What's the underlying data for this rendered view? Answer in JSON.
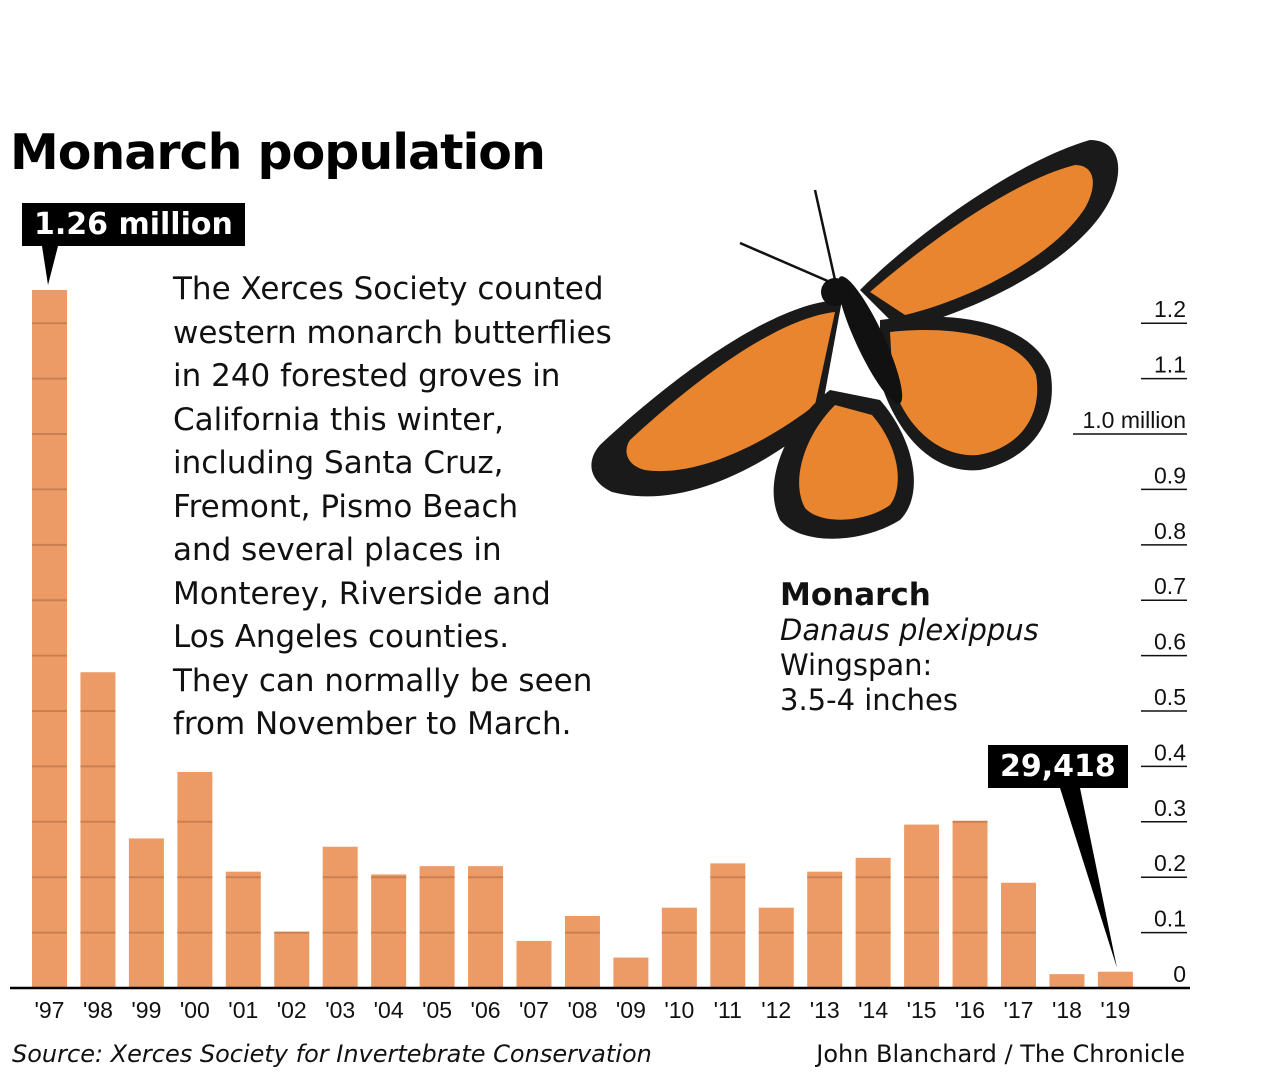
{
  "title": "Monarch population",
  "callouts": {
    "peak": "1.26 million",
    "latest": "29,418"
  },
  "description": [
    "The Xerces Society counted",
    "western monarch butterflies",
    "in 240 forested groves in",
    "California this winter,",
    "including Santa Cruz,",
    "Fremont, Pismo Beach",
    "and several places in",
    "Monterey, Riverside and",
    "Los Angeles counties.",
    "They can normally be seen",
    "from November to March."
  ],
  "species": {
    "common_name": "Monarch",
    "latin_name": "Danaus plexippus",
    "wingspan_label": "Wingspan:",
    "wingspan_value": "3.5-4 inches"
  },
  "source": "Source: Xerces Society for Invertebrate Conservation",
  "credit": "John Blanchard / The Chronicle",
  "colors": {
    "bar": "#ec9b66",
    "bar_line": "#c97f52",
    "callout_bg": "#000000"
  },
  "chart_data": {
    "type": "bar",
    "categories": [
      "'97",
      "'98",
      "'99",
      "'00",
      "'01",
      "'02",
      "'03",
      "'04",
      "'05",
      "'06",
      "'07",
      "'08",
      "'09",
      "'10",
      "'11",
      "'12",
      "'13",
      "'14",
      "'15",
      "'16",
      "'17",
      "'18",
      "'19"
    ],
    "values": [
      1.26,
      0.57,
      0.27,
      0.39,
      0.21,
      0.1,
      0.255,
      0.205,
      0.22,
      0.22,
      0.085,
      0.13,
      0.055,
      0.145,
      0.225,
      0.145,
      0.21,
      0.235,
      0.295,
      0.3,
      0.19,
      0.025,
      0.029418
    ],
    "ylim": [
      0,
      1.26
    ],
    "yticks": [
      {
        "value": 0,
        "label": "0"
      },
      {
        "value": 0.1,
        "label": "0.1"
      },
      {
        "value": 0.2,
        "label": "0.2"
      },
      {
        "value": 0.3,
        "label": "0.3"
      },
      {
        "value": 0.4,
        "label": "0.4"
      },
      {
        "value": 0.5,
        "label": "0.5"
      },
      {
        "value": 0.6,
        "label": "0.6"
      },
      {
        "value": 0.7,
        "label": "0.7"
      },
      {
        "value": 0.8,
        "label": "0.8"
      },
      {
        "value": 0.9,
        "label": "0.9"
      },
      {
        "value": 1.0,
        "label": "1.0 million"
      },
      {
        "value": 1.1,
        "label": "1.1"
      },
      {
        "value": 1.2,
        "label": "1.2"
      }
    ],
    "grid": "horizontal lines across bars",
    "legend": "none"
  }
}
